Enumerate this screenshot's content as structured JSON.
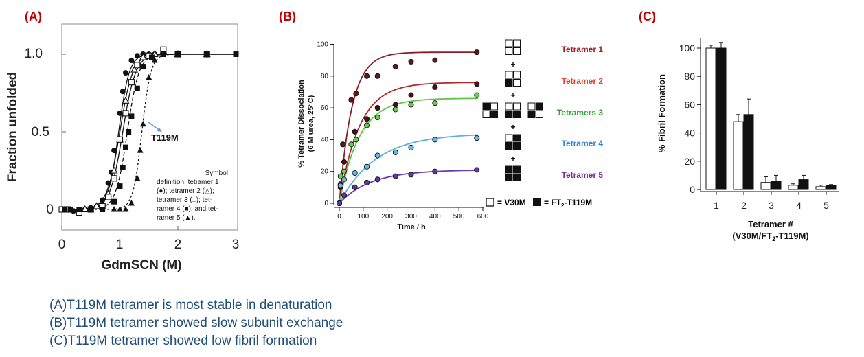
{
  "panel_labels": [
    "(A)",
    "(B)",
    "(C)"
  ],
  "panelA": {
    "xlabel": "GdmSCN (M)",
    "ylabel": "Fraction unfolded",
    "xticks": [
      "0",
      "1",
      "2",
      "3"
    ],
    "yticks": [
      "0",
      "0.5",
      "1.0"
    ],
    "annotation": "T119M",
    "legend_lines": [
      "Symbol",
      "definition: tetıamer 1",
      "(●); tetramer 2 (△);",
      "tetramer 3 (□); tet-",
      "ramer 4 (■); and tet-",
      "ramer 5 (▲)."
    ]
  },
  "panelB": {
    "xlabel": "Time / h",
    "ylabel_line1": "% Tetramer Dissociation",
    "ylabel_line2": "(6 M urea, 25°C)",
    "xticks": [
      "0",
      "100",
      "200",
      "300",
      "400",
      "500",
      "600"
    ],
    "yticks": [
      "0",
      "20",
      "40",
      "60",
      "80",
      "100"
    ],
    "series_labels": [
      "Tetramer 1",
      "Tetramer 2",
      "Tetramers 3",
      "Tetramer 4",
      "Tetramer 5"
    ],
    "plus": "+",
    "key_v30m": "= V30M",
    "key_ft2": "= FT",
    "key_sub": "2",
    "key_tail": "-T119M"
  },
  "panelC": {
    "xlabel": "Tetramer #",
    "xlabel2_pre": "(V30M/FT",
    "xlabel2_sub": "2",
    "xlabel2_post": "-T119M)",
    "ylabel": "% Fibril Formation",
    "xticks": [
      "1",
      "2",
      "3",
      "4",
      "5"
    ],
    "yticks": [
      "0",
      "20",
      "40",
      "60",
      "80",
      "100"
    ]
  },
  "captions": [
    "(A)T119M tetramer is most stable in denaturation",
    "(B)T119M tetramer showed slow subunit exchange",
    "(C)T119M tetramer showed low fibril formation"
  ],
  "colors": {
    "label_red": "#c00000",
    "caption": "#1f4e79",
    "tetramer1": "#a8161e",
    "tetramer2": "#e0442a",
    "tetramer3": "#2aa82a",
    "tetramer4": "#2e86d0",
    "tetramer5": "#7a2a9a",
    "b_tet1": "#8b1a2a",
    "b_tet2": "#b0282a",
    "b_tet3": "#5ec44a",
    "b_tet4": "#5ab0e0",
    "b_tet5": "#6a3aa8",
    "annotation_arrow": "#5b9bd5"
  },
  "chart_data": [
    {
      "type": "scatter",
      "title": "",
      "xlabel": "GdmSCN (M)",
      "ylabel": "Fraction unfolded",
      "xlim": [
        0,
        3
      ],
      "ylim": [
        -0.05,
        1.15
      ],
      "grid": false,
      "series": [
        {
          "name": "tetramer 1",
          "marker": "filled-circle",
          "midpoint": 0.98,
          "x": [
            0.0,
            0.1,
            0.2,
            0.3,
            0.4,
            0.5,
            0.6,
            0.7,
            0.8,
            0.85,
            0.9,
            1.0,
            1.05,
            1.1,
            1.2,
            1.3,
            1.4,
            1.5,
            1.6,
            1.75,
            2.0,
            2.5,
            3.0
          ],
          "y": [
            0.0,
            0.0,
            -0.01,
            0.0,
            0.0,
            0.01,
            0.02,
            0.06,
            0.17,
            0.24,
            0.38,
            0.62,
            0.76,
            0.88,
            0.96,
            0.99,
            1.0,
            1.0,
            1.0,
            1.0,
            1.0,
            1.0,
            1.0
          ]
        },
        {
          "name": "tetramer 2",
          "marker": "open-triangle",
          "midpoint": 1.0,
          "x": [
            0.4,
            0.6,
            0.8,
            0.9,
            1.0,
            1.1,
            1.25,
            1.4,
            1.6,
            1.75,
            2.0,
            2.5
          ],
          "y": [
            0.0,
            0.02,
            0.1,
            0.25,
            0.45,
            0.7,
            0.9,
            0.98,
            1.0,
            1.02,
            1.0,
            1.0
          ]
        },
        {
          "name": "tetramer 3",
          "marker": "open-square",
          "midpoint": 1.05,
          "x": [
            0.0,
            0.1,
            0.3,
            0.5,
            0.7,
            0.8,
            0.9,
            1.0,
            1.1,
            1.2,
            1.3,
            1.5,
            1.75,
            2.0,
            2.5
          ],
          "y": [
            0.0,
            0.0,
            -0.02,
            0.0,
            0.02,
            0.08,
            0.2,
            0.45,
            0.62,
            0.82,
            0.93,
            0.99,
            1.03,
            1.0,
            1.0
          ]
        },
        {
          "name": "tetramer 4",
          "marker": "filled-square",
          "midpoint": 1.13,
          "x": [
            0.05,
            0.15,
            0.3,
            0.5,
            0.7,
            0.9,
            1.0,
            1.05,
            1.1,
            1.15,
            1.2,
            1.3,
            1.4,
            1.55,
            1.75,
            2.0,
            2.5,
            3.0
          ],
          "y": [
            0.0,
            0.0,
            0.0,
            0.0,
            0.0,
            0.05,
            0.15,
            0.27,
            0.4,
            0.5,
            0.6,
            0.78,
            0.92,
            0.98,
            1.0,
            1.0,
            1.0,
            1.0
          ]
        },
        {
          "name": "tetramer 5",
          "marker": "filled-triangle",
          "midpoint": 1.38,
          "x": [
            0.9,
            1.0,
            1.1,
            1.2,
            1.3,
            1.35,
            1.4,
            1.5,
            1.6
          ],
          "y": [
            0.0,
            0.0,
            0.0,
            0.04,
            0.2,
            0.38,
            0.55,
            0.85,
            0.96
          ]
        }
      ]
    },
    {
      "type": "line",
      "title": "",
      "xlabel": "Time / h",
      "ylabel": "% Tetramer Dissociation (6 M urea, 25°C)",
      "xlim": [
        0,
        600
      ],
      "ylim": [
        0,
        100
      ],
      "grid": false,
      "series": [
        {
          "name": "Tetramer 1",
          "plateau": 95,
          "rate": 0.019,
          "x": [
            0,
            5,
            15,
            50,
            70,
            115,
            160,
            235,
            300,
            400,
            575
          ],
          "y": [
            0,
            12,
            37,
            65,
            69,
            80,
            80,
            86,
            89,
            90,
            95
          ]
        },
        {
          "name": "Tetramer 2",
          "plateau": 76,
          "rate": 0.012,
          "x": [
            0,
            5,
            20,
            65,
            115,
            160,
            235,
            300,
            400,
            575
          ],
          "y": [
            0,
            10,
            26,
            45,
            53,
            60,
            62,
            68,
            73,
            75
          ]
        },
        {
          "name": "Tetramers 3",
          "plateau": 66,
          "rate": 0.012,
          "x": [
            0,
            5,
            20,
            50,
            70,
            115,
            160,
            235,
            300,
            400,
            575
          ],
          "y": [
            0,
            17,
            20,
            37,
            40,
            49,
            54,
            59,
            62,
            63,
            68
          ]
        },
        {
          "name": "Tetramer 4",
          "plateau": 44,
          "rate": 0.0065,
          "x": [
            0,
            5,
            20,
            65,
            115,
            160,
            235,
            300,
            400,
            575
          ],
          "y": [
            0,
            11,
            15,
            19,
            23,
            30,
            32,
            35,
            40,
            41
          ]
        },
        {
          "name": "Tetramer 5",
          "plateau": 21,
          "rate": 0.0075,
          "x": [
            0,
            20,
            65,
            115,
            160,
            235,
            300,
            400,
            575
          ],
          "y": [
            0,
            5,
            10,
            13,
            15,
            17,
            18,
            20,
            21
          ]
        }
      ]
    },
    {
      "type": "bar",
      "title": "",
      "xlabel": "Tetramer # (V30M/FT2-T119M)",
      "ylabel": "% Fibril Formation",
      "ylim": [
        0,
        110
      ],
      "categories": [
        "1",
        "2",
        "3",
        "4",
        "5"
      ],
      "series": [
        {
          "fill": "open",
          "values": [
            100,
            48,
            5,
            3,
            2
          ],
          "errors": [
            2,
            5,
            4,
            1,
            1
          ]
        },
        {
          "fill": "filled",
          "values": [
            100,
            53,
            6,
            7,
            3
          ],
          "errors": [
            4,
            11,
            4,
            3,
            0.5
          ]
        }
      ]
    }
  ]
}
